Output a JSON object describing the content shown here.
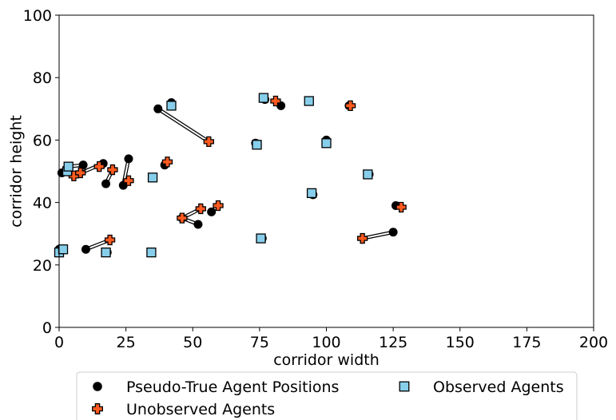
{
  "chart_data": {
    "type": "scatter",
    "xlabel": "corridor width",
    "ylabel": "corridor height",
    "xlim": [
      0,
      200
    ],
    "ylim": [
      0,
      100
    ],
    "x_ticks": [
      "0",
      "25",
      "50",
      "75",
      "100",
      "125",
      "150",
      "175",
      "200"
    ],
    "y_ticks": [
      "0",
      "20",
      "40",
      "60",
      "80",
      "100"
    ],
    "grid": false,
    "legend_position": "below",
    "colors": {
      "pseudo_true": "#000000",
      "unobserved": "#ff5a1f",
      "observed": "#87ceeb",
      "link_outer": "#000000",
      "link_inner": "#ffffff"
    },
    "series": [
      {
        "name": "Pseudo-True Agent Positions",
        "marker": "circle",
        "points": [
          [
            0,
            25
          ],
          [
            10,
            25
          ],
          [
            16.5,
            52.5
          ],
          [
            9,
            52
          ],
          [
            17.5,
            46
          ],
          [
            24,
            45.5
          ],
          [
            26,
            54
          ],
          [
            34.5,
            24
          ],
          [
            37,
            70
          ],
          [
            39.5,
            52
          ],
          [
            42,
            72
          ],
          [
            46,
            35
          ],
          [
            52,
            33
          ],
          [
            57,
            37
          ],
          [
            73.5,
            59
          ],
          [
            77,
            73
          ],
          [
            83,
            71
          ],
          [
            76,
            28.5
          ],
          [
            95,
            42.5
          ],
          [
            100,
            60
          ],
          [
            108.5,
            71
          ],
          [
            116,
            49
          ],
          [
            125,
            30.5
          ],
          [
            126,
            39
          ],
          [
            1,
            49.5
          ],
          [
            3,
            51
          ],
          [
            18,
            24
          ]
        ]
      },
      {
        "name": "Unobserved Agents",
        "marker": "plus",
        "points": [
          [
            5.5,
            48.5
          ],
          [
            8,
            49.5
          ],
          [
            15,
            51.5
          ],
          [
            19,
            28
          ],
          [
            20,
            50.5
          ],
          [
            26,
            47
          ],
          [
            40.5,
            53
          ],
          [
            46,
            35
          ],
          [
            53,
            38
          ],
          [
            56,
            59.5
          ],
          [
            59.5,
            39
          ],
          [
            81,
            72.5
          ],
          [
            109,
            71
          ],
          [
            113.5,
            28.5
          ],
          [
            128,
            38.5
          ]
        ]
      },
      {
        "name": "Observed Agents",
        "marker": "square",
        "points": [
          [
            0,
            24
          ],
          [
            1.5,
            25
          ],
          [
            3,
            50
          ],
          [
            3.5,
            51.5
          ],
          [
            17.5,
            24
          ],
          [
            35,
            48
          ],
          [
            34.5,
            24
          ],
          [
            42,
            71
          ],
          [
            74,
            58.5
          ],
          [
            76.5,
            73.5
          ],
          [
            75.5,
            28.5
          ],
          [
            93.5,
            72.5
          ],
          [
            94.5,
            43
          ],
          [
            100,
            59
          ],
          [
            115.5,
            49
          ]
        ]
      }
    ],
    "links": [
      [
        [
          37,
          70
        ],
        [
          56,
          59.5
        ]
      ],
      [
        [
          125,
          30.5
        ],
        [
          113.5,
          28.5
        ]
      ],
      [
        [
          46,
          35
        ],
        [
          52,
          33
        ]
      ],
      [
        [
          46,
          35
        ],
        [
          53,
          38
        ]
      ],
      [
        [
          57,
          37
        ],
        [
          59.5,
          39
        ]
      ],
      [
        [
          5.5,
          48.5
        ],
        [
          16.5,
          52.5
        ]
      ],
      [
        [
          9,
          52
        ],
        [
          3.5,
          51.5
        ]
      ],
      [
        [
          17.5,
          46
        ],
        [
          20,
          50.5
        ]
      ],
      [
        [
          24,
          45.5
        ],
        [
          26,
          54
        ]
      ],
      [
        [
          10,
          25
        ],
        [
          19,
          28
        ]
      ],
      [
        [
          83,
          71
        ],
        [
          81,
          72.5
        ]
      ],
      [
        [
          126,
          39
        ],
        [
          128,
          38.5
        ]
      ],
      [
        [
          39.5,
          52
        ],
        [
          40.5,
          53
        ]
      ],
      [
        [
          0,
          25
        ],
        [
          1.5,
          25
        ]
      ]
    ]
  }
}
